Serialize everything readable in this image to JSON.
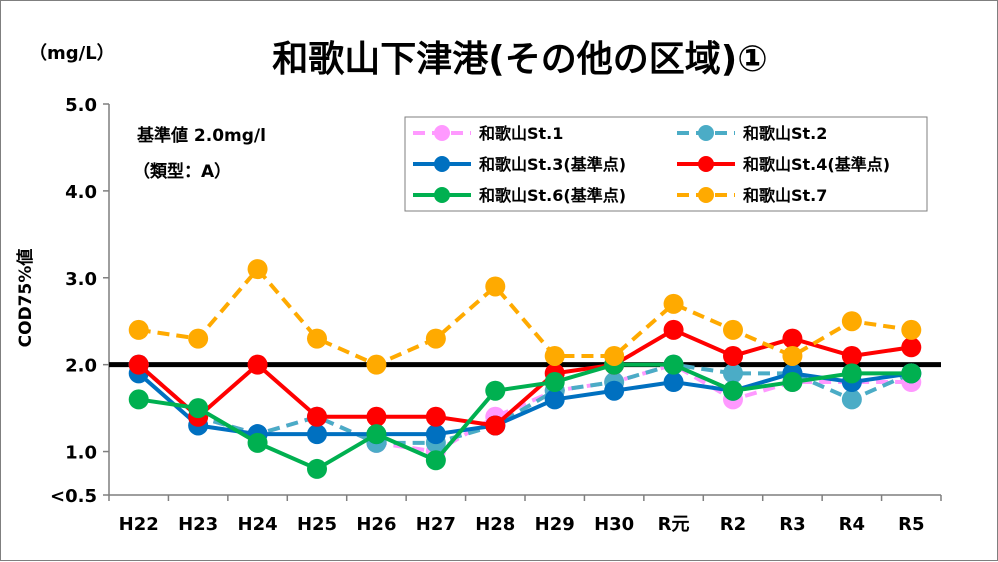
{
  "chart_data": {
    "type": "line",
    "title": "和歌山下津港(その他の区域)①",
    "unit_label": "（mg/L）",
    "ylabel": "COD75%値",
    "xlabel": "",
    "ylim": [
      0.5,
      5.0
    ],
    "yticks": [
      {
        "value": 0.5,
        "label": "<0.5"
      },
      {
        "value": 1.0,
        "label": "1.0"
      },
      {
        "value": 2.0,
        "label": "2.0"
      },
      {
        "value": 3.0,
        "label": "3.0"
      },
      {
        "value": 4.0,
        "label": "4.0"
      },
      {
        "value": 5.0,
        "label": "5.0"
      }
    ],
    "categories": [
      "H22",
      "H23",
      "H24",
      "H25",
      "H26",
      "H27",
      "H28",
      "H29",
      "H30",
      "R元",
      "R2",
      "R3",
      "R4",
      "R5"
    ],
    "standard": {
      "value": 2.0,
      "color": "#000000"
    },
    "annotation_lines": [
      "基準値  2.0mg/l",
      "（類型：A）"
    ],
    "grid": false,
    "legend_position": "top-right",
    "series": [
      {
        "name": "和歌山St.1",
        "color": "#ff99ff",
        "dashed": true,
        "values": [
          2.0,
          1.4,
          1.2,
          1.4,
          1.1,
          1.0,
          1.4,
          1.7,
          1.8,
          2.0,
          1.6,
          1.8,
          1.8,
          1.8
        ]
      },
      {
        "name": "和歌山St.2",
        "color": "#4bacc6",
        "dashed": true,
        "values": [
          2.0,
          1.4,
          1.2,
          1.4,
          1.1,
          1.1,
          1.3,
          1.7,
          1.8,
          2.0,
          1.9,
          1.9,
          1.6,
          1.9
        ]
      },
      {
        "name": "和歌山St.3(基準点)",
        "color": "#0070c0",
        "dashed": false,
        "values": [
          1.9,
          1.3,
          1.2,
          1.2,
          1.2,
          1.2,
          1.3,
          1.6,
          1.7,
          1.8,
          1.7,
          1.9,
          1.8,
          1.9
        ]
      },
      {
        "name": "和歌山St.4(基準点)",
        "color": "#ff0000",
        "dashed": false,
        "values": [
          2.0,
          1.4,
          2.0,
          1.4,
          1.4,
          1.4,
          1.3,
          1.9,
          2.0,
          2.4,
          2.1,
          2.3,
          2.1,
          2.2
        ]
      },
      {
        "name": "和歌山St.6(基準点)",
        "color": "#00b050",
        "dashed": false,
        "values": [
          1.6,
          1.5,
          1.1,
          0.8,
          1.2,
          0.9,
          1.7,
          1.8,
          2.0,
          2.0,
          1.7,
          1.8,
          1.9,
          1.9
        ]
      },
      {
        "name": "和歌山St.7",
        "color": "#ffaa00",
        "dashed": true,
        "values": [
          2.4,
          2.3,
          3.1,
          2.3,
          2.0,
          2.3,
          2.9,
          2.1,
          2.1,
          2.7,
          2.4,
          2.1,
          2.5,
          2.4
        ]
      }
    ],
    "legend_order": [
      0,
      1,
      2,
      3,
      4,
      5
    ]
  }
}
